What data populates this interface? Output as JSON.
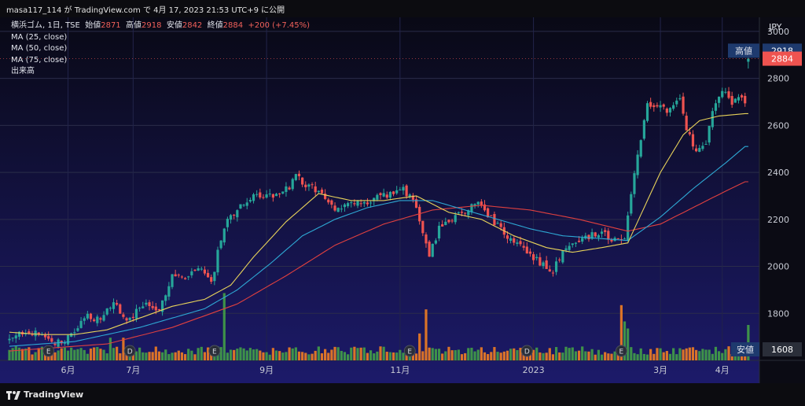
{
  "header": {
    "title": "masa117_114 が TradingView.com で 4月 17, 2023 21:53 UTC+9 に公開"
  },
  "legend": {
    "symbol": "横浜ゴム, 1日, TSE",
    "open_label": "始値",
    "open": "2871",
    "high_label": "高値",
    "high": "2918",
    "low_label": "安値",
    "low": "2842",
    "close_label": "終値",
    "close": "2884",
    "change": "+200 (+7.45%)",
    "indicators": [
      "MA (25, close)",
      "MA (50, close)",
      "MA (75, close)",
      "出来高"
    ]
  },
  "footer": {
    "brand": "TradingView"
  },
  "colors": {
    "up": "#26a69a",
    "down": "#ef5350",
    "ma25": "#e8d35a",
    "ma50": "#2ea8d4",
    "ma75": "#e0403f",
    "vol_up": "#43a047",
    "vol_down": "#ef7d22"
  },
  "chart_data": {
    "type": "candlestick",
    "currency_label": "JPY",
    "ylim": [
      1600,
      3060
    ],
    "y_ticks": [
      1800,
      2000,
      2200,
      2400,
      2600,
      2800,
      3000
    ],
    "x_labels": [
      {
        "i": 18,
        "label": "6月"
      },
      {
        "i": 38,
        "label": "7月"
      },
      {
        "i": 79,
        "label": "9月"
      },
      {
        "i": 120,
        "label": "11月"
      },
      {
        "i": 161,
        "label": "2023"
      },
      {
        "i": 200,
        "label": "3月"
      },
      {
        "i": 219,
        "label": "4月"
      }
    ],
    "price_markers": [
      {
        "label": "高値",
        "value": "2918"
      },
      {
        "label": "",
        "value": "2884"
      },
      {
        "label": "安値",
        "value": "1608"
      }
    ],
    "events": [
      {
        "i": 12,
        "kind": "E"
      },
      {
        "i": 37,
        "kind": "D"
      },
      {
        "i": 63,
        "kind": "E"
      },
      {
        "i": 123,
        "kind": "E"
      },
      {
        "i": 159,
        "kind": "D"
      },
      {
        "i": 188,
        "kind": "E"
      }
    ],
    "ma25_anchors": [
      [
        0,
        1720
      ],
      [
        10,
        1710
      ],
      [
        20,
        1710
      ],
      [
        30,
        1730
      ],
      [
        40,
        1780
      ],
      [
        50,
        1830
      ],
      [
        60,
        1860
      ],
      [
        68,
        1920
      ],
      [
        75,
        2040
      ],
      [
        85,
        2190
      ],
      [
        95,
        2310
      ],
      [
        105,
        2280
      ],
      [
        115,
        2280
      ],
      [
        125,
        2300
      ],
      [
        135,
        2230
      ],
      [
        145,
        2200
      ],
      [
        155,
        2130
      ],
      [
        165,
        2080
      ],
      [
        173,
        2060
      ],
      [
        182,
        2080
      ],
      [
        190,
        2100
      ],
      [
        195,
        2250
      ],
      [
        200,
        2400
      ],
      [
        207,
        2560
      ],
      [
        212,
        2620
      ],
      [
        218,
        2640
      ],
      [
        226,
        2650
      ]
    ],
    "ma50_anchors": [
      [
        0,
        1660
      ],
      [
        20,
        1680
      ],
      [
        40,
        1740
      ],
      [
        60,
        1820
      ],
      [
        70,
        1900
      ],
      [
        80,
        2010
      ],
      [
        90,
        2130
      ],
      [
        100,
        2200
      ],
      [
        110,
        2250
      ],
      [
        120,
        2280
      ],
      [
        130,
        2280
      ],
      [
        140,
        2240
      ],
      [
        150,
        2200
      ],
      [
        160,
        2160
      ],
      [
        170,
        2130
      ],
      [
        180,
        2120
      ],
      [
        190,
        2110
      ],
      [
        200,
        2210
      ],
      [
        210,
        2330
      ],
      [
        220,
        2440
      ],
      [
        226,
        2510
      ]
    ],
    "ma75_anchors": [
      [
        0,
        1640
      ],
      [
        30,
        1670
      ],
      [
        50,
        1740
      ],
      [
        70,
        1840
      ],
      [
        85,
        1960
      ],
      [
        100,
        2090
      ],
      [
        115,
        2180
      ],
      [
        130,
        2240
      ],
      [
        145,
        2260
      ],
      [
        160,
        2240
      ],
      [
        175,
        2200
      ],
      [
        190,
        2150
      ],
      [
        200,
        2180
      ],
      [
        210,
        2250
      ],
      [
        220,
        2320
      ],
      [
        226,
        2360
      ]
    ],
    "close_anchors": [
      [
        0,
        1680
      ],
      [
        5,
        1730
      ],
      [
        10,
        1700
      ],
      [
        16,
        1670
      ],
      [
        20,
        1720
      ],
      [
        24,
        1790
      ],
      [
        28,
        1770
      ],
      [
        32,
        1850
      ],
      [
        36,
        1760
      ],
      [
        42,
        1850
      ],
      [
        46,
        1820
      ],
      [
        50,
        1960
      ],
      [
        54,
        1940
      ],
      [
        58,
        2000
      ],
      [
        62,
        1920
      ],
      [
        64,
        2060
      ],
      [
        66,
        2170
      ],
      [
        70,
        2240
      ],
      [
        75,
        2300
      ],
      [
        80,
        2300
      ],
      [
        86,
        2340
      ],
      [
        88,
        2380
      ],
      [
        92,
        2340
      ],
      [
        96,
        2310
      ],
      [
        100,
        2230
      ],
      [
        104,
        2280
      ],
      [
        108,
        2260
      ],
      [
        112,
        2290
      ],
      [
        116,
        2300
      ],
      [
        120,
        2340
      ],
      [
        124,
        2280
      ],
      [
        126,
        2200
      ],
      [
        129,
        2050
      ],
      [
        132,
        2160
      ],
      [
        136,
        2200
      ],
      [
        140,
        2240
      ],
      [
        144,
        2270
      ],
      [
        148,
        2200
      ],
      [
        152,
        2140
      ],
      [
        156,
        2100
      ],
      [
        160,
        2040
      ],
      [
        164,
        2010
      ],
      [
        167,
        1980
      ],
      [
        170,
        2060
      ],
      [
        174,
        2110
      ],
      [
        178,
        2130
      ],
      [
        182,
        2140
      ],
      [
        186,
        2110
      ],
      [
        189,
        2130
      ],
      [
        191,
        2300
      ],
      [
        193,
        2480
      ],
      [
        196,
        2680
      ],
      [
        200,
        2680
      ],
      [
        203,
        2660
      ],
      [
        206,
        2720
      ],
      [
        208,
        2580
      ],
      [
        211,
        2490
      ],
      [
        214,
        2510
      ],
      [
        216,
        2660
      ],
      [
        219,
        2750
      ],
      [
        222,
        2690
      ],
      [
        224,
        2720
      ],
      [
        226,
        2700
      ],
      [
        227,
        2884
      ]
    ],
    "volume_note": "bars relative to panel"
  }
}
